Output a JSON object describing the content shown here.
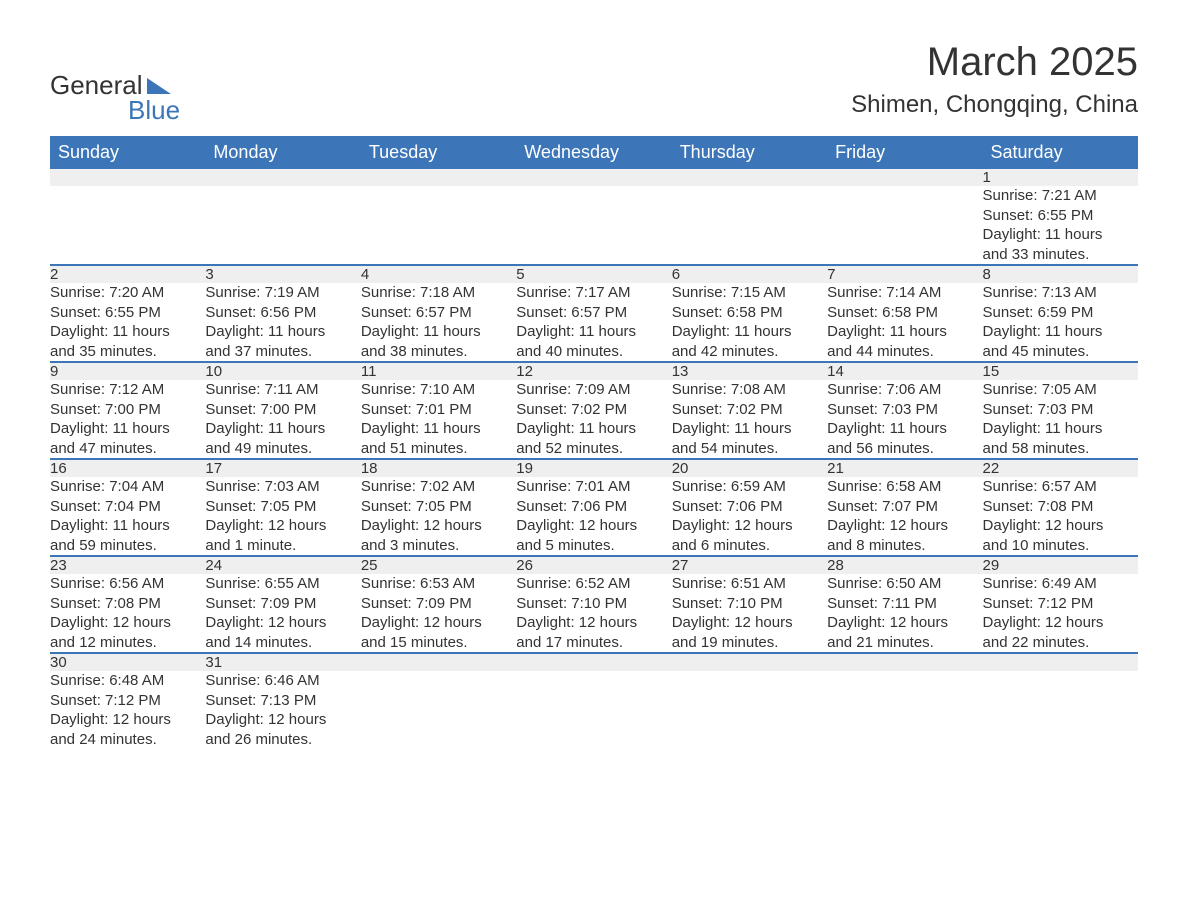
{
  "brand": {
    "part1": "General",
    "part2": "Blue"
  },
  "title": "March 2025",
  "subtitle": "Shimen, Chongqing, China",
  "colors": {
    "header_bg": "#3d76b8",
    "header_text": "#ffffff",
    "daynum_bg": "#efefef",
    "row_border": "#3d76b8",
    "body_text": "#333333",
    "page_bg": "#ffffff"
  },
  "layout": {
    "columns": 7,
    "week_rows": 6,
    "title_fontsize": 40,
    "subtitle_fontsize": 24,
    "header_fontsize": 18,
    "body_fontsize": 15
  },
  "weekdays": [
    "Sunday",
    "Monday",
    "Tuesday",
    "Wednesday",
    "Thursday",
    "Friday",
    "Saturday"
  ],
  "weeks": [
    [
      null,
      null,
      null,
      null,
      null,
      null,
      {
        "day": "1",
        "sunrise": "Sunrise: 7:21 AM",
        "sunset": "Sunset: 6:55 PM",
        "daylight1": "Daylight: 11 hours",
        "daylight2": "and 33 minutes."
      }
    ],
    [
      {
        "day": "2",
        "sunrise": "Sunrise: 7:20 AM",
        "sunset": "Sunset: 6:55 PM",
        "daylight1": "Daylight: 11 hours",
        "daylight2": "and 35 minutes."
      },
      {
        "day": "3",
        "sunrise": "Sunrise: 7:19 AM",
        "sunset": "Sunset: 6:56 PM",
        "daylight1": "Daylight: 11 hours",
        "daylight2": "and 37 minutes."
      },
      {
        "day": "4",
        "sunrise": "Sunrise: 7:18 AM",
        "sunset": "Sunset: 6:57 PM",
        "daylight1": "Daylight: 11 hours",
        "daylight2": "and 38 minutes."
      },
      {
        "day": "5",
        "sunrise": "Sunrise: 7:17 AM",
        "sunset": "Sunset: 6:57 PM",
        "daylight1": "Daylight: 11 hours",
        "daylight2": "and 40 minutes."
      },
      {
        "day": "6",
        "sunrise": "Sunrise: 7:15 AM",
        "sunset": "Sunset: 6:58 PM",
        "daylight1": "Daylight: 11 hours",
        "daylight2": "and 42 minutes."
      },
      {
        "day": "7",
        "sunrise": "Sunrise: 7:14 AM",
        "sunset": "Sunset: 6:58 PM",
        "daylight1": "Daylight: 11 hours",
        "daylight2": "and 44 minutes."
      },
      {
        "day": "8",
        "sunrise": "Sunrise: 7:13 AM",
        "sunset": "Sunset: 6:59 PM",
        "daylight1": "Daylight: 11 hours",
        "daylight2": "and 45 minutes."
      }
    ],
    [
      {
        "day": "9",
        "sunrise": "Sunrise: 7:12 AM",
        "sunset": "Sunset: 7:00 PM",
        "daylight1": "Daylight: 11 hours",
        "daylight2": "and 47 minutes."
      },
      {
        "day": "10",
        "sunrise": "Sunrise: 7:11 AM",
        "sunset": "Sunset: 7:00 PM",
        "daylight1": "Daylight: 11 hours",
        "daylight2": "and 49 minutes."
      },
      {
        "day": "11",
        "sunrise": "Sunrise: 7:10 AM",
        "sunset": "Sunset: 7:01 PM",
        "daylight1": "Daylight: 11 hours",
        "daylight2": "and 51 minutes."
      },
      {
        "day": "12",
        "sunrise": "Sunrise: 7:09 AM",
        "sunset": "Sunset: 7:02 PM",
        "daylight1": "Daylight: 11 hours",
        "daylight2": "and 52 minutes."
      },
      {
        "day": "13",
        "sunrise": "Sunrise: 7:08 AM",
        "sunset": "Sunset: 7:02 PM",
        "daylight1": "Daylight: 11 hours",
        "daylight2": "and 54 minutes."
      },
      {
        "day": "14",
        "sunrise": "Sunrise: 7:06 AM",
        "sunset": "Sunset: 7:03 PM",
        "daylight1": "Daylight: 11 hours",
        "daylight2": "and 56 minutes."
      },
      {
        "day": "15",
        "sunrise": "Sunrise: 7:05 AM",
        "sunset": "Sunset: 7:03 PM",
        "daylight1": "Daylight: 11 hours",
        "daylight2": "and 58 minutes."
      }
    ],
    [
      {
        "day": "16",
        "sunrise": "Sunrise: 7:04 AM",
        "sunset": "Sunset: 7:04 PM",
        "daylight1": "Daylight: 11 hours",
        "daylight2": "and 59 minutes."
      },
      {
        "day": "17",
        "sunrise": "Sunrise: 7:03 AM",
        "sunset": "Sunset: 7:05 PM",
        "daylight1": "Daylight: 12 hours",
        "daylight2": "and 1 minute."
      },
      {
        "day": "18",
        "sunrise": "Sunrise: 7:02 AM",
        "sunset": "Sunset: 7:05 PM",
        "daylight1": "Daylight: 12 hours",
        "daylight2": "and 3 minutes."
      },
      {
        "day": "19",
        "sunrise": "Sunrise: 7:01 AM",
        "sunset": "Sunset: 7:06 PM",
        "daylight1": "Daylight: 12 hours",
        "daylight2": "and 5 minutes."
      },
      {
        "day": "20",
        "sunrise": "Sunrise: 6:59 AM",
        "sunset": "Sunset: 7:06 PM",
        "daylight1": "Daylight: 12 hours",
        "daylight2": "and 6 minutes."
      },
      {
        "day": "21",
        "sunrise": "Sunrise: 6:58 AM",
        "sunset": "Sunset: 7:07 PM",
        "daylight1": "Daylight: 12 hours",
        "daylight2": "and 8 minutes."
      },
      {
        "day": "22",
        "sunrise": "Sunrise: 6:57 AM",
        "sunset": "Sunset: 7:08 PM",
        "daylight1": "Daylight: 12 hours",
        "daylight2": "and 10 minutes."
      }
    ],
    [
      {
        "day": "23",
        "sunrise": "Sunrise: 6:56 AM",
        "sunset": "Sunset: 7:08 PM",
        "daylight1": "Daylight: 12 hours",
        "daylight2": "and 12 minutes."
      },
      {
        "day": "24",
        "sunrise": "Sunrise: 6:55 AM",
        "sunset": "Sunset: 7:09 PM",
        "daylight1": "Daylight: 12 hours",
        "daylight2": "and 14 minutes."
      },
      {
        "day": "25",
        "sunrise": "Sunrise: 6:53 AM",
        "sunset": "Sunset: 7:09 PM",
        "daylight1": "Daylight: 12 hours",
        "daylight2": "and 15 minutes."
      },
      {
        "day": "26",
        "sunrise": "Sunrise: 6:52 AM",
        "sunset": "Sunset: 7:10 PM",
        "daylight1": "Daylight: 12 hours",
        "daylight2": "and 17 minutes."
      },
      {
        "day": "27",
        "sunrise": "Sunrise: 6:51 AM",
        "sunset": "Sunset: 7:10 PM",
        "daylight1": "Daylight: 12 hours",
        "daylight2": "and 19 minutes."
      },
      {
        "day": "28",
        "sunrise": "Sunrise: 6:50 AM",
        "sunset": "Sunset: 7:11 PM",
        "daylight1": "Daylight: 12 hours",
        "daylight2": "and 21 minutes."
      },
      {
        "day": "29",
        "sunrise": "Sunrise: 6:49 AM",
        "sunset": "Sunset: 7:12 PM",
        "daylight1": "Daylight: 12 hours",
        "daylight2": "and 22 minutes."
      }
    ],
    [
      {
        "day": "30",
        "sunrise": "Sunrise: 6:48 AM",
        "sunset": "Sunset: 7:12 PM",
        "daylight1": "Daylight: 12 hours",
        "daylight2": "and 24 minutes."
      },
      {
        "day": "31",
        "sunrise": "Sunrise: 6:46 AM",
        "sunset": "Sunset: 7:13 PM",
        "daylight1": "Daylight: 12 hours",
        "daylight2": "and 26 minutes."
      },
      null,
      null,
      null,
      null,
      null
    ]
  ]
}
